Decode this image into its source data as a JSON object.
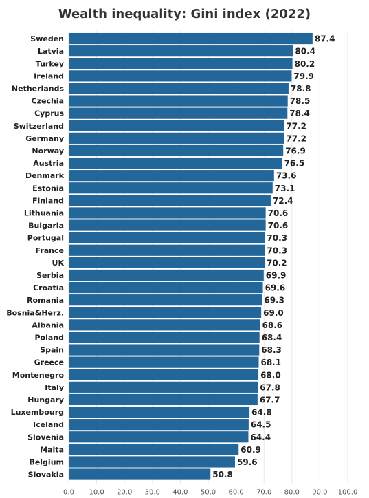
{
  "chart_data": {
    "type": "bar",
    "orientation": "horizontal",
    "title": "Wealth inequality: Gini index (2022)",
    "categories": [
      "Sweden",
      "Latvia",
      "Turkey",
      "Ireland",
      "Netherlands",
      "Czechia",
      "Cyprus",
      "Switzerland",
      "Germany",
      "Norway",
      "Austria",
      "Denmark",
      "Estonia",
      "Finland",
      "Lithuania",
      "Bulgaria",
      "Portugal",
      "France",
      "UK",
      "Serbia",
      "Croatia",
      "Romania",
      "Bosnia&Herz.",
      "Albania",
      "Poland",
      "Spain",
      "Greece",
      "Montenegro",
      "Italy",
      "Hungary",
      "Luxembourg",
      "Iceland",
      "Slovenia",
      "Malta",
      "Belgium",
      "Slovakia"
    ],
    "values": [
      87.4,
      80.4,
      80.2,
      79.9,
      78.8,
      78.5,
      78.4,
      77.2,
      77.2,
      76.9,
      76.5,
      73.6,
      73.1,
      72.4,
      70.6,
      70.6,
      70.3,
      70.3,
      70.2,
      69.9,
      69.6,
      69.3,
      69.0,
      68.6,
      68.4,
      68.3,
      68.1,
      68.0,
      67.8,
      67.7,
      64.8,
      64.5,
      64.4,
      60.9,
      59.6,
      50.8
    ],
    "value_labels": [
      "87.4",
      "80.4",
      "80.2",
      "79.9",
      "78.8",
      "78.5",
      "78.4",
      "77.2",
      "77.2",
      "76.9",
      "76.5",
      "73.6",
      "73.1",
      "72.4",
      "70.6",
      "70.6",
      "70.3",
      "70.3",
      "70.2",
      "69.9",
      "69.6",
      "69.3",
      "69.0",
      "68.6",
      "68.4",
      "68.3",
      "68.1",
      "68.0",
      "67.8",
      "67.7",
      "64.8",
      "64.5",
      "64.4",
      "60.9",
      "59.6",
      "50.8"
    ],
    "xlim": [
      0,
      100
    ],
    "x_ticks": [
      "0.0",
      "10.0",
      "20.0",
      "30.0",
      "40.0",
      "50.0",
      "60.0",
      "70.0",
      "80.0",
      "90.0",
      "100.0"
    ],
    "grid": true,
    "legend": "none",
    "colors": {
      "bar": "#23679a",
      "grid": "#e6e6e6",
      "text": "#222222"
    }
  }
}
